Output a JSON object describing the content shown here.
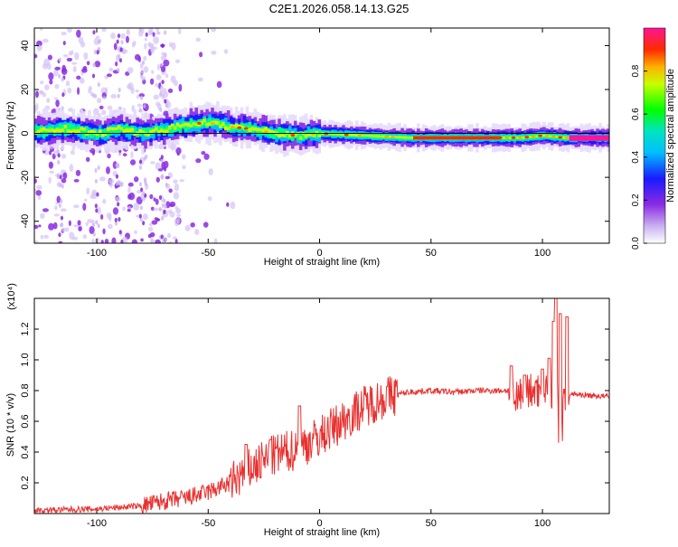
{
  "title": "C2E1.2026.058.14.13.G25",
  "chart_data": [
    {
      "type": "heatmap",
      "xlabel": "Height of straight line (km)",
      "ylabel": "Frequency (Hz)",
      "xlim": [
        -128,
        130
      ],
      "ylim": [
        -50,
        48
      ],
      "xticks": [
        -100,
        -50,
        0,
        50,
        100
      ],
      "yticks": [
        -40,
        -20,
        0,
        20,
        40
      ],
      "colorbar": {
        "label": "Normalized spectral amplitude",
        "range": [
          0,
          1
        ],
        "ticks": [
          0.0,
          0.2,
          0.4,
          0.6,
          0.8
        ],
        "tick_labels": [
          "0.0",
          "0.2",
          "0.4",
          "0.6",
          "0.8"
        ]
      },
      "ridge_center_hz": [
        [
          -128,
          1
        ],
        [
          -115,
          2
        ],
        [
          -100,
          0
        ],
        [
          -90,
          2
        ],
        [
          -80,
          0
        ],
        [
          -70,
          2
        ],
        [
          -60,
          4
        ],
        [
          -50,
          5
        ],
        [
          -40,
          3
        ],
        [
          -30,
          2
        ],
        [
          -20,
          0
        ],
        [
          -10,
          -1
        ],
        [
          0,
          0
        ],
        [
          20,
          -1
        ],
        [
          40,
          -2
        ],
        [
          60,
          -2
        ],
        [
          80,
          -2
        ],
        [
          90,
          -2
        ],
        [
          100,
          -1
        ],
        [
          110,
          -2
        ],
        [
          130,
          -2
        ]
      ]
    },
    {
      "type": "line",
      "xlabel": "Height of straight line (km)",
      "ylabel": "SNR (10 * v/v)",
      "y_multiplier": "(x10⁴)",
      "xlim": [
        -128,
        130
      ],
      "ylim": [
        0.0,
        1.4
      ],
      "xticks": [
        -100,
        -50,
        0,
        50,
        100
      ],
      "yticks": [
        0.2,
        0.4,
        0.6,
        0.8,
        1.0,
        1.2
      ],
      "ytick_labels": [
        "0.2",
        "0.4",
        "0.6",
        "0.8",
        "1.0",
        "1.2"
      ],
      "color": "#e8312f",
      "series_envelope": {
        "x": [
          -128,
          -100,
          -80,
          -70,
          -60,
          -50,
          -40,
          -30,
          -20,
          -10,
          0,
          10,
          20,
          30,
          40,
          50,
          60,
          70,
          80,
          85,
          90,
          95,
          100,
          105,
          108,
          112,
          120,
          130
        ],
        "y": [
          0.02,
          0.03,
          0.05,
          0.08,
          0.1,
          0.14,
          0.2,
          0.3,
          0.38,
          0.42,
          0.5,
          0.6,
          0.7,
          0.76,
          0.79,
          0.8,
          0.79,
          0.8,
          0.8,
          0.8,
          0.78,
          0.8,
          0.8,
          0.78,
          0.8,
          0.78,
          0.77,
          0.76
        ]
      },
      "spikes": [
        {
          "x": -33,
          "y": 0.45
        },
        {
          "x": -22,
          "y": 0.48
        },
        {
          "x": -9,
          "y": 0.7
        },
        {
          "x": 86,
          "y": 0.96
        },
        {
          "x": 92,
          "y": 0.9
        },
        {
          "x": 100,
          "y": 0.94
        },
        {
          "x": 103,
          "y": 1.01
        },
        {
          "x": 105,
          "y": 1.25
        },
        {
          "x": 106,
          "y": 1.4
        },
        {
          "x": 108,
          "y": 1.3
        },
        {
          "x": 111,
          "y": 1.28
        }
      ]
    }
  ]
}
